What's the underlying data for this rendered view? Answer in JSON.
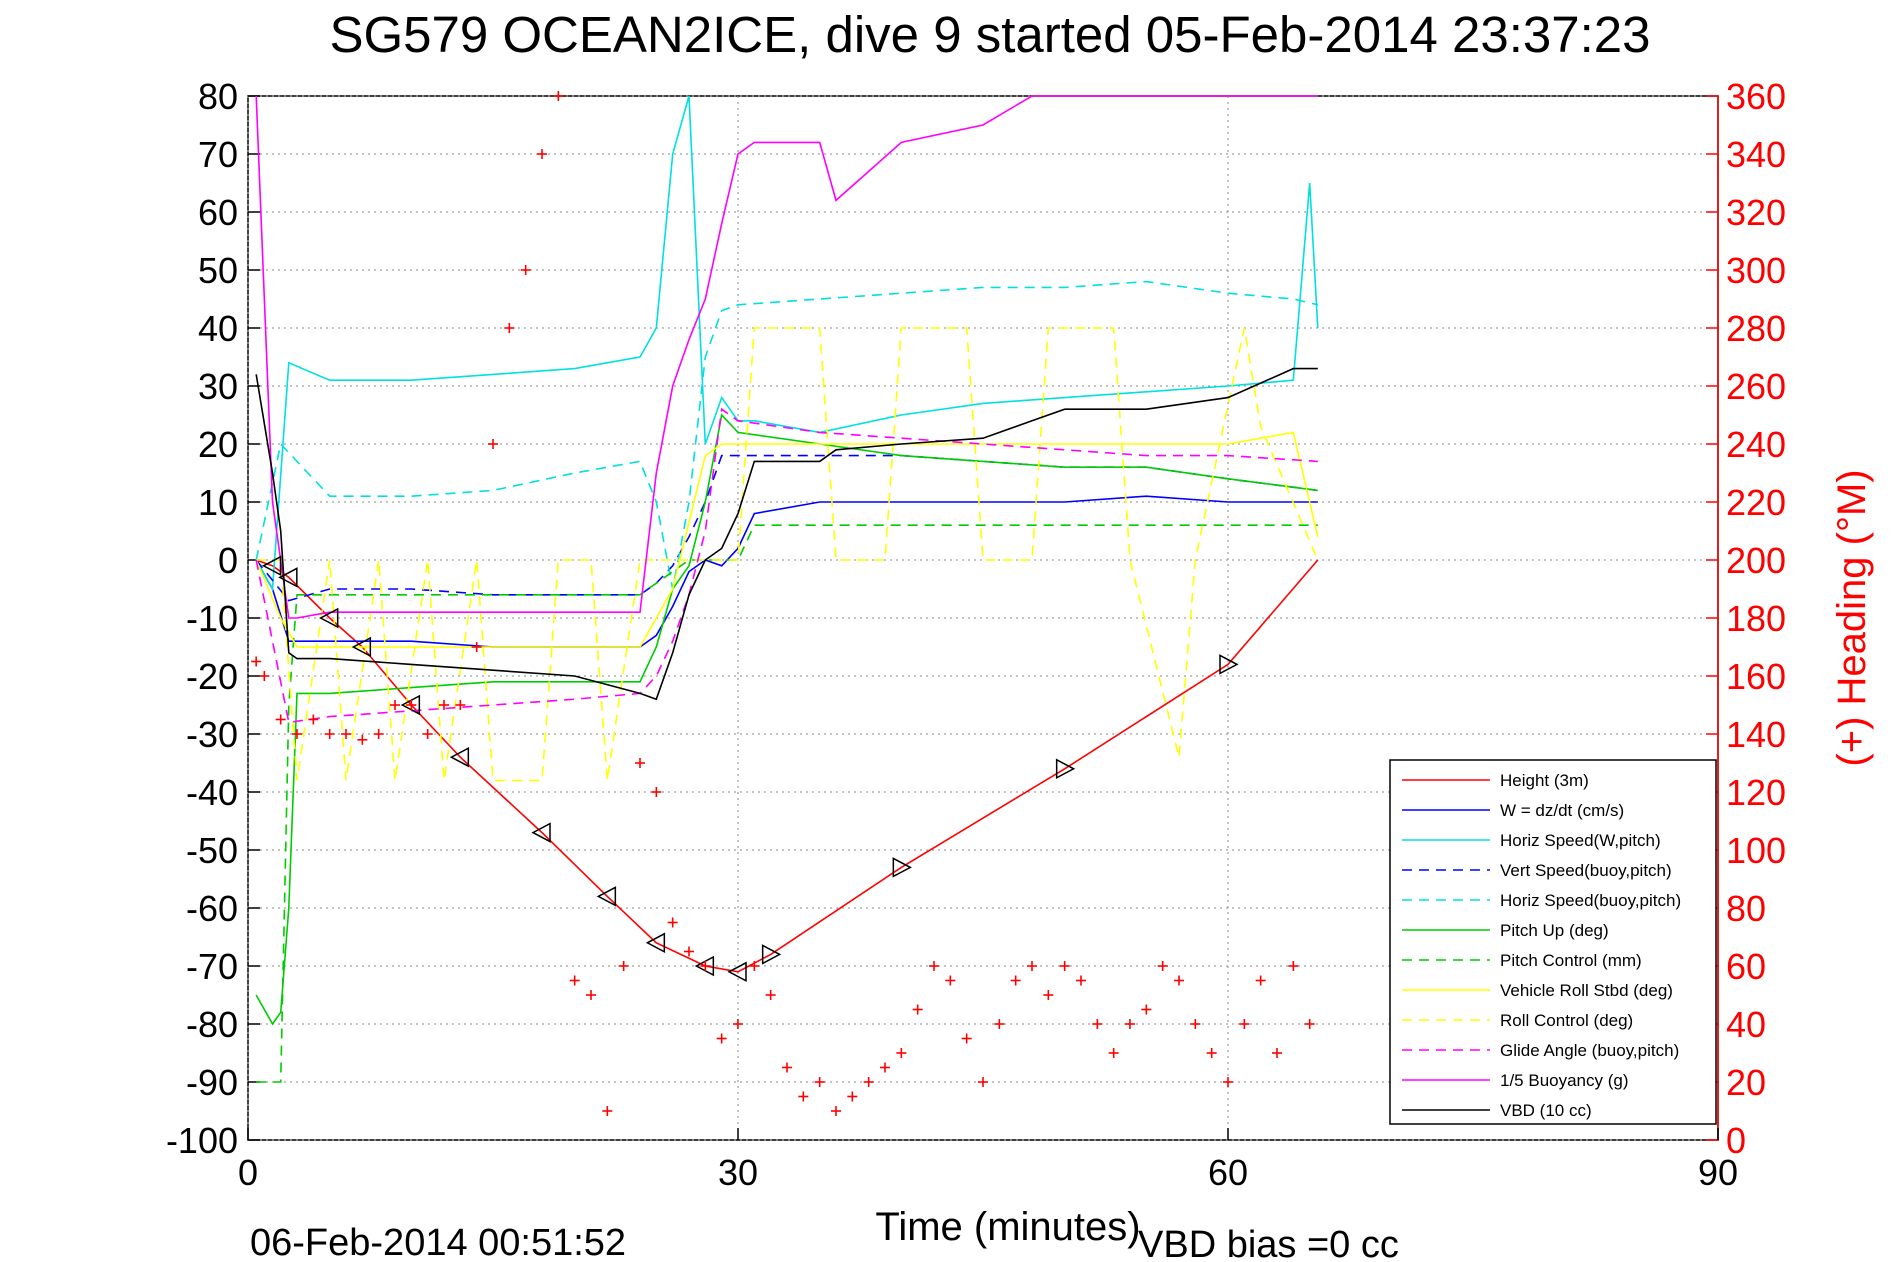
{
  "chart_data": {
    "type": "line",
    "title": "SG579 OCEAN2ICE, dive 9 started 05-Feb-2014 23:37:23",
    "xlabel": "Time (minutes)",
    "ylabel_right": "(+) Heading (°M)",
    "footer_left": "06-Feb-2014 00:51:52",
    "footer_right": "VBD bias =0 cc",
    "xlim": [
      0,
      90
    ],
    "ylim": [
      -100,
      80
    ],
    "ylim_right": [
      0,
      360
    ],
    "x_ticks": [
      "0",
      "30",
      "60",
      "90"
    ],
    "y_ticks": [
      "80",
      "70",
      "60",
      "50",
      "40",
      "30",
      "20",
      "10",
      "0",
      "-10",
      "-20",
      "-30",
      "-40",
      "-50",
      "-60",
      "-70",
      "-80",
      "-90",
      "-100"
    ],
    "y_ticks_right": [
      "360",
      "340",
      "320",
      "300",
      "280",
      "260",
      "240",
      "220",
      "200",
      "180",
      "160",
      "140",
      "120",
      "100",
      "80",
      "60",
      "40",
      "20",
      "0"
    ],
    "grid": "dotted",
    "legend_placement": "bottom-right",
    "colors": {
      "heading": "#ff0000",
      "right_axis": "#ff0000"
    },
    "series": [
      {
        "name": "Height (3m)",
        "color": "#ff0000",
        "dash": "solid",
        "x": [
          0.5,
          1.5,
          2.5,
          5,
          7,
          10,
          13,
          18,
          22,
          25,
          28,
          30,
          32,
          40,
          50,
          60,
          65.5
        ],
        "y": [
          0,
          -1,
          -3,
          -10,
          -15,
          -25,
          -34,
          -47,
          -58,
          -66,
          -70,
          -71,
          -68,
          -53,
          -36,
          -18,
          0
        ]
      },
      {
        "name": "W = dz/dt (cm/s)",
        "color": "#0000ff",
        "dash": "solid",
        "x": [
          0.5,
          1.5,
          2.5,
          5,
          10,
          15,
          20,
          24,
          25,
          26,
          27,
          28,
          29,
          30,
          31,
          35,
          40,
          45,
          50,
          55,
          60,
          65.5
        ],
        "y": [
          0,
          -5,
          -14,
          -14,
          -14,
          -15,
          -15,
          -15,
          -13,
          -8,
          -2,
          0,
          -1,
          2,
          8,
          10,
          10,
          10,
          10,
          11,
          10,
          10
        ]
      },
      {
        "name": "Horiz Speed(W,pitch)",
        "color": "#00e0e0",
        "dash": "solid",
        "x": [
          0.5,
          1.5,
          2.5,
          5,
          10,
          15,
          20,
          24,
          25,
          26,
          27,
          28,
          29,
          30,
          31,
          35,
          40,
          45,
          50,
          55,
          60,
          64,
          65,
          65.5
        ],
        "y": [
          0,
          -5,
          34,
          31,
          31,
          32,
          33,
          35,
          40,
          70,
          80,
          20,
          28,
          24,
          24,
          22,
          25,
          27,
          28,
          29,
          30,
          31,
          65,
          40
        ]
      },
      {
        "name": "Vert Speed(buoy,pitch)",
        "color": "#0000ff",
        "dash": "dash",
        "x": [
          0.5,
          2.5,
          5,
          10,
          15,
          20,
          24,
          25,
          26,
          27,
          28,
          29,
          30,
          35,
          40,
          45,
          50,
          55,
          60,
          65.5
        ],
        "y": [
          0,
          -7,
          -5,
          -5,
          -6,
          -6,
          -6,
          -4,
          -1,
          4,
          10,
          18,
          18,
          18,
          18,
          17,
          16,
          16,
          14,
          12
        ]
      },
      {
        "name": "Horiz Speed(buoy,pitch)",
        "color": "#00e0e0",
        "dash": "dash",
        "x": [
          0.5,
          2,
          3,
          5,
          10,
          15,
          20,
          24,
          25,
          26,
          27,
          28,
          29,
          30,
          35,
          40,
          45,
          50,
          55,
          60,
          64,
          65.5
        ],
        "y": [
          0,
          20,
          17,
          11,
          11,
          12,
          15,
          17,
          10,
          -5,
          10,
          35,
          43,
          44,
          45,
          46,
          47,
          47,
          48,
          46,
          45,
          44
        ]
      },
      {
        "name": "Pitch Up (deg)",
        "color": "#00cc00",
        "dash": "solid",
        "x": [
          0.5,
          1.5,
          2,
          2.5,
          3,
          5,
          10,
          15,
          20,
          24,
          25,
          26,
          27,
          28,
          29,
          30,
          35,
          40,
          45,
          50,
          55,
          60,
          65.5
        ],
        "y": [
          -75,
          -80,
          -78,
          -60,
          -23,
          -23,
          -22,
          -21,
          -21,
          -21,
          -15,
          -5,
          -1,
          10,
          25,
          22,
          20,
          18,
          17,
          16,
          16,
          14,
          12
        ]
      },
      {
        "name": "Pitch Control (mm)",
        "color": "#00cc00",
        "dash": "dash",
        "x": [
          0.5,
          1.5,
          2,
          2.5,
          3,
          10,
          20,
          24,
          25,
          26,
          27,
          28,
          29,
          30,
          31,
          40,
          50,
          60,
          65.5
        ],
        "y": [
          -90,
          -90,
          -90,
          -25,
          -6,
          -6,
          -6,
          -6,
          -4,
          -2,
          0,
          0,
          0,
          0,
          6,
          6,
          6,
          6,
          6
        ]
      },
      {
        "name": "Vehicle Roll Stbd (deg)",
        "color": "#ffff00",
        "dash": "solid",
        "x": [
          0.5,
          2,
          3,
          10,
          20,
          24,
          25,
          26,
          28,
          29,
          30,
          35,
          40,
          45,
          50,
          55,
          60,
          64,
          65.5
        ],
        "y": [
          0,
          -10,
          -15,
          -15,
          -15,
          -15,
          -10,
          -5,
          18,
          20,
          20,
          20,
          20,
          20,
          20,
          20,
          20,
          22,
          4
        ]
      },
      {
        "name": "Roll Control (deg)",
        "color": "#ffff00",
        "dash": "dash",
        "x": [
          0.5,
          2,
          3,
          5,
          6,
          8,
          9,
          11,
          12,
          14,
          15,
          18,
          19,
          21,
          22,
          24,
          25,
          30,
          31,
          35,
          36,
          39,
          40,
          44,
          45,
          48,
          49,
          53,
          54,
          57,
          58,
          61,
          62,
          65.5
        ],
        "y": [
          0,
          0,
          -38,
          0,
          -38,
          0,
          -38,
          0,
          -38,
          0,
          -38,
          -38,
          0,
          0,
          -38,
          0,
          0,
          0,
          40,
          40,
          0,
          0,
          40,
          40,
          0,
          0,
          40,
          40,
          0,
          -34,
          0,
          40,
          23,
          0
        ]
      },
      {
        "name": "Glide Angle (buoy,pitch)",
        "color": "#ff00ff",
        "dash": "dash",
        "x": [
          0.5,
          2.5,
          5,
          10,
          15,
          20,
          24,
          25,
          26,
          27,
          28,
          29,
          30,
          35,
          40,
          45,
          50,
          55,
          60,
          65.5
        ],
        "y": [
          0,
          -28,
          -27,
          -26,
          -25,
          -24,
          -23,
          -20,
          -14,
          -6,
          5,
          26,
          24,
          22,
          21,
          20,
          19,
          18,
          18,
          17
        ]
      },
      {
        "name": "1/5 Buoyancy (g)",
        "color": "#ff00ff",
        "dash": "solid",
        "x": [
          0.5,
          1.5,
          2.5,
          3,
          5,
          10,
          15,
          20,
          24,
          25,
          26,
          27,
          28,
          29,
          30,
          31,
          35,
          36,
          40,
          45,
          48,
          50,
          55,
          60,
          64,
          65.5
        ],
        "y": [
          80,
          10,
          -10,
          -10,
          -9,
          -9,
          -9,
          -9,
          -9,
          15,
          30,
          38,
          45,
          58,
          70,
          72,
          72,
          62,
          72,
          75,
          80,
          80,
          80,
          80,
          80,
          80
        ]
      },
      {
        "name": "VBD (10 cc)",
        "color": "#000000",
        "dash": "solid",
        "x": [
          0.5,
          1.5,
          2,
          2.5,
          3,
          5,
          10,
          15,
          20,
          24,
          25,
          26,
          27,
          28,
          29,
          30,
          31,
          35,
          36,
          40,
          45,
          48,
          50,
          55,
          60,
          64,
          65.5
        ],
        "y": [
          32,
          15,
          5,
          -16,
          -17,
          -17,
          -18,
          -19,
          -20,
          -23,
          -24,
          -16,
          -6,
          0,
          2,
          8,
          17,
          17,
          19,
          20,
          21,
          24,
          26,
          26,
          28,
          33,
          33
        ]
      }
    ],
    "heading_points": {
      "name": "Heading",
      "color": "#ff0000",
      "marker": "+",
      "x": [
        0.5,
        1,
        2,
        3,
        4,
        5,
        6,
        7,
        8,
        9,
        10,
        11,
        12,
        13,
        14,
        15,
        16,
        17,
        18,
        19,
        20,
        21,
        22,
        23,
        24,
        25,
        26,
        27,
        28,
        29,
        30,
        31,
        32,
        33,
        34,
        35,
        36,
        37,
        38,
        39,
        40,
        41,
        42,
        43,
        44,
        45,
        46,
        47,
        48,
        49,
        50,
        51,
        52,
        53,
        54,
        55,
        56,
        57,
        58,
        59,
        60,
        61,
        62,
        63,
        64,
        65
      ],
      "y": [
        165,
        160,
        145,
        140,
        145,
        140,
        140,
        138,
        140,
        150,
        150,
        140,
        150,
        150,
        170,
        240,
        280,
        300,
        340,
        360,
        55,
        50,
        10,
        60,
        130,
        120,
        75,
        65,
        60,
        35,
        40,
        60,
        50,
        25,
        15,
        20,
        10,
        15,
        20,
        25,
        30,
        45,
        60,
        55,
        35,
        20,
        40,
        55,
        60,
        50,
        60,
        55,
        40,
        30,
        40,
        45,
        60,
        55,
        40,
        30,
        20,
        40,
        55,
        30,
        60,
        40
      ]
    },
    "legend": [
      "Height (3m)",
      "W = dz/dt (cm/s)",
      "Horiz Speed(W,pitch)",
      "Vert Speed(buoy,pitch)",
      "Horiz Speed(buoy,pitch)",
      "Pitch Up (deg)",
      "Pitch Control (mm)",
      "Vehicle Roll Stbd (deg)",
      "Roll Control (deg)",
      "Glide Angle (buoy,pitch)",
      "1/5 Buoyancy (g)",
      "VBD (10 cc)"
    ]
  }
}
